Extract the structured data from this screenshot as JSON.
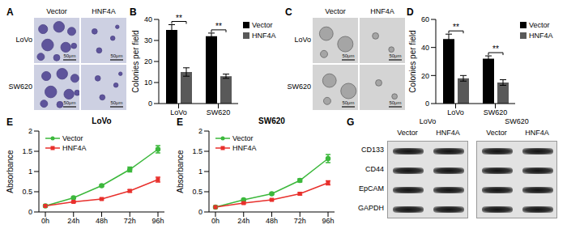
{
  "chart_data": [
    {
      "panel_label": "B",
      "type": "bar",
      "categories": [
        "LoVo",
        "SW620"
      ],
      "y_label": "Colonies per field",
      "ylim": [
        0,
        40
      ],
      "yticks": [
        0,
        10,
        20,
        30,
        40
      ],
      "legend": "upper right",
      "series": [
        {
          "name": "Vector",
          "color": "#000000",
          "values": [
            35,
            32
          ],
          "errors": [
            2.5,
            1.5
          ]
        },
        {
          "name": "HNF4A",
          "color": "#595959",
          "values": [
            15,
            13
          ],
          "errors": [
            2,
            1
          ]
        }
      ],
      "annotations": [
        {
          "text": "**",
          "category": "LoVo",
          "between": [
            "Vector",
            "HNF4A"
          ]
        },
        {
          "text": "**",
          "category": "SW620",
          "between": [
            "Vector",
            "HNF4A"
          ]
        }
      ]
    },
    {
      "panel_label": "D",
      "type": "bar",
      "categories": [
        "LoVo",
        "SW620"
      ],
      "y_label": "Colonies per field",
      "ylim": [
        0,
        60
      ],
      "yticks": [
        0,
        20,
        40,
        60
      ],
      "legend": "upper right",
      "series": [
        {
          "name": "Vector",
          "color": "#000000",
          "values": [
            46,
            32
          ],
          "errors": [
            3.5,
            2
          ]
        },
        {
          "name": "HNF4A",
          "color": "#595959",
          "values": [
            18,
            15
          ],
          "errors": [
            2,
            2
          ]
        }
      ],
      "annotations": [
        {
          "text": "**",
          "category": "LoVo",
          "between": [
            "Vector",
            "HNF4A"
          ]
        },
        {
          "text": "**",
          "category": "SW620",
          "between": [
            "Vector",
            "HNF4A"
          ]
        }
      ]
    },
    {
      "panel_label": "E",
      "type": "line",
      "title": "LoVo",
      "categories": [
        "0h",
        "24h",
        "48h",
        "72h",
        "96h"
      ],
      "y_label": "Absorbance",
      "ylim": [
        0,
        2
      ],
      "yticks": [
        0,
        0.5,
        1,
        1.5,
        2
      ],
      "legend": "upper left",
      "series": [
        {
          "name": "Vector",
          "color": "#3cb83c",
          "marker": "circle",
          "values": [
            0.15,
            0.35,
            0.65,
            1.05,
            1.55
          ],
          "errors": [
            0.01,
            0.02,
            0.02,
            0.06,
            0.09
          ]
        },
        {
          "name": "HNF4A",
          "color": "#e8302c",
          "marker": "square",
          "values": [
            0.15,
            0.25,
            0.32,
            0.52,
            0.8
          ],
          "errors": [
            0.01,
            0.02,
            0.02,
            0.03,
            0.06
          ]
        }
      ]
    },
    {
      "panel_label": "E",
      "type": "line",
      "title": "SW620",
      "categories": [
        "0h",
        "24h",
        "48h",
        "72h",
        "96h"
      ],
      "y_label": "Absorbance",
      "ylim": [
        0,
        2
      ],
      "yticks": [
        0,
        0.5,
        1,
        1.5,
        2
      ],
      "legend": "upper left",
      "series": [
        {
          "name": "Vector",
          "color": "#3cb83c",
          "marker": "circle",
          "values": [
            0.12,
            0.3,
            0.45,
            0.78,
            1.32
          ],
          "errors": [
            0.01,
            0.02,
            0.02,
            0.04,
            0.1
          ]
        },
        {
          "name": "HNF4A",
          "color": "#e8302c",
          "marker": "square",
          "values": [
            0.12,
            0.22,
            0.3,
            0.45,
            0.72
          ],
          "errors": [
            0.01,
            0.02,
            0.02,
            0.03,
            0.05
          ]
        }
      ]
    }
  ],
  "images": [
    {
      "panel_label": "A",
      "columns": [
        "Vector",
        "HNF4A"
      ],
      "rows": [
        "LoVo",
        "SW620"
      ],
      "scale_bar": "50μm"
    },
    {
      "panel_label": "C",
      "columns": [
        "Vector",
        "HNF4A"
      ],
      "rows": [
        "LoVo",
        "SW620"
      ],
      "scale_bar": "50μm"
    }
  ],
  "blot": {
    "panel_label": "G",
    "groups": [
      {
        "name": "LoVo",
        "lanes": [
          "Vector",
          "HNF4A"
        ]
      },
      {
        "name": "SW620",
        "lanes": [
          "Vector",
          "HNF4A"
        ]
      }
    ],
    "rows": [
      "CD133",
      "CD44",
      "EpCAM",
      "GAPDH"
    ]
  }
}
